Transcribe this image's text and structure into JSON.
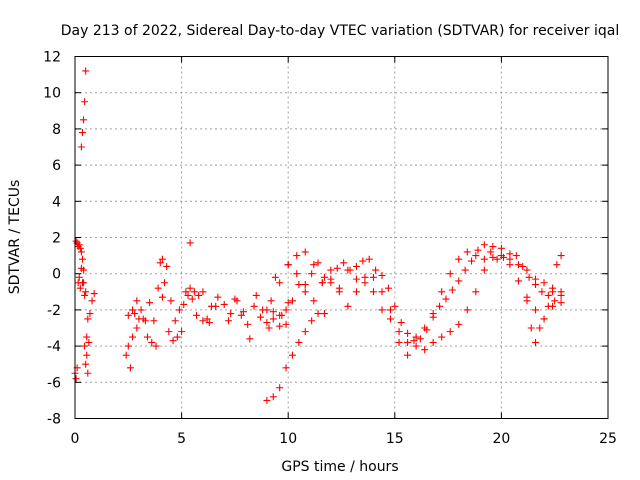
{
  "chart_data": {
    "type": "scatter",
    "title": "Day 213 of 2022, Sidereal Day-to-day VTEC variation (SDTVAR) for receiver iqal",
    "xlabel": "GPS time / hours",
    "ylabel": "SDTVAR / TECUs",
    "xlim": [
      0,
      25
    ],
    "ylim": [
      -8,
      12
    ],
    "xticks": [
      "0",
      "5",
      "10",
      "15",
      "20",
      "25"
    ],
    "yticks": [
      "-8",
      "-6",
      "-4",
      "-2",
      "0",
      "2",
      "4",
      "6",
      "8",
      "10",
      "12"
    ],
    "grid": true,
    "marker": "+",
    "colors": {
      "marker": "#ff0000",
      "grid": "#a0a0a0",
      "axis": "#000000"
    },
    "series": [
      {
        "name": "SDTVAR",
        "x": [
          0.0,
          0.05,
          0.1,
          0.15,
          0.2,
          0.25,
          0.3,
          0.35,
          0.4,
          0.45,
          0.5,
          0.55,
          0.6,
          0.65,
          0.7,
          0.8,
          0.9,
          0.05,
          0.1,
          0.15,
          0.2,
          0.25,
          0.3,
          0.35,
          0.4,
          0.45,
          0.5,
          0.55,
          0.6,
          0.3,
          0.35,
          0.4,
          0.45,
          0.5,
          2.4,
          2.5,
          2.6,
          2.7,
          2.8,
          2.9,
          3.0,
          3.2,
          3.4,
          3.6,
          3.8,
          4.0,
          4.1,
          4.2,
          4.4,
          4.6,
          4.8,
          5.0,
          5.2,
          5.4,
          5.6,
          5.8,
          6.0,
          6.2,
          6.4,
          2.5,
          2.7,
          2.9,
          3.1,
          3.3,
          3.5,
          3.7,
          3.9,
          4.1,
          4.3,
          4.5,
          4.7,
          4.9,
          5.1,
          5.3,
          5.5,
          5.7,
          6.0,
          6.3,
          6.6,
          5.4,
          6.7,
          7.0,
          7.3,
          7.6,
          7.9,
          8.2,
          8.5,
          8.8,
          9.1,
          9.4,
          9.7,
          10.0,
          7.2,
          7.5,
          7.8,
          8.1,
          8.4,
          8.7,
          9.0,
          9.3,
          9.6,
          9.9,
          9.2,
          9.6,
          10.0,
          10.4,
          10.8,
          11.2,
          11.6,
          12.0,
          12.4,
          12.8,
          13.2,
          13.6,
          14.0,
          14.4,
          14.8,
          15.2,
          15.6,
          16.0,
          16.4,
          16.8,
          17.2,
          17.6,
          18.0,
          18.4,
          18.8,
          19.2,
          19.6,
          20.0,
          20.4,
          20.8,
          21.2,
          21.6,
          22.0,
          22.4,
          22.8,
          9.0,
          9.3,
          9.6,
          9.9,
          10.2,
          10.5,
          10.8,
          11.1,
          11.4,
          11.7,
          12.0,
          12.3,
          12.6,
          12.9,
          13.2,
          13.5,
          13.8,
          14.1,
          14.4,
          14.7,
          15.0,
          15.3,
          15.6,
          15.9,
          16.2,
          16.5,
          16.8,
          17.1,
          17.4,
          17.7,
          18.0,
          18.3,
          18.6,
          18.9,
          19.2,
          19.5,
          19.8,
          20.1,
          20.4,
          20.7,
          21.0,
          21.3,
          21.6,
          21.9,
          22.2,
          22.5,
          22.8,
          9.0,
          9.3,
          9.6,
          9.9,
          10.2,
          10.5,
          10.8,
          11.1,
          11.4,
          11.7,
          10.0,
          10.4,
          10.8,
          11.2,
          11.6,
          12.0,
          12.4,
          12.8,
          13.2,
          13.6,
          14.0,
          14.4,
          14.8,
          15.2,
          15.6,
          16.0,
          16.4,
          16.8,
          17.2,
          17.6,
          18.0,
          18.4,
          18.8,
          19.2,
          19.6,
          20.0,
          20.4,
          20.8,
          21.2,
          21.6,
          22.0,
          22.4,
          22.8,
          21.2,
          21.4,
          21.6,
          21.8,
          22.0,
          22.2,
          22.4,
          22.6,
          22.8
        ],
        "y": [
          -5.5,
          -5.8,
          -5.2,
          -0.5,
          -0.2,
          -0.8,
          0.3,
          -0.5,
          -0.5,
          -1.2,
          -1.0,
          -3.5,
          -2.5,
          -3.8,
          -2.2,
          -1.5,
          -1.1,
          1.8,
          1.7,
          1.5,
          1.6,
          1.4,
          1.2,
          0.8,
          0.2,
          -4.0,
          -5.0,
          -4.5,
          -5.5,
          7.0,
          7.8,
          8.5,
          9.5,
          11.2,
          -4.5,
          -4.0,
          -5.2,
          -3.5,
          -2.2,
          -3.0,
          -2.5,
          -2.5,
          -3.5,
          -3.8,
          -4.0,
          0.6,
          0.8,
          -0.5,
          -3.2,
          -3.7,
          -3.5,
          -3.2,
          -1.0,
          -0.8,
          -1.0,
          -1.2,
          -1.0,
          -2.5,
          -1.8,
          -2.3,
          -2.0,
          -1.5,
          -2.0,
          -2.6,
          -1.6,
          -2.6,
          -0.8,
          -1.3,
          0.4,
          -1.5,
          -2.6,
          -2.0,
          -1.7,
          -1.2,
          -1.4,
          -2.3,
          -2.6,
          -2.7,
          -1.8,
          1.7,
          -1.3,
          -1.7,
          -2.2,
          -1.5,
          -2.1,
          -3.6,
          -1.2,
          -2.0,
          -3.0,
          -0.2,
          -2.3,
          -1.6,
          -2.6,
          -1.4,
          -2.3,
          -2.8,
          -1.8,
          -2.4,
          -2.7,
          -2.1,
          -2.9,
          -2.0,
          -1.5,
          -0.5,
          0.5,
          1.0,
          1.2,
          0.5,
          -0.5,
          -0.5,
          -0.8,
          0.2,
          -0.3,
          -0.5,
          -0.2,
          -1.0,
          -2.0,
          -3.2,
          -3.8,
          -3.5,
          -3.0,
          -2.2,
          -1.0,
          0.0,
          0.8,
          1.2,
          1.0,
          0.8,
          0.9,
          1.0,
          0.8,
          0.5,
          0.2,
          -0.3,
          -0.5,
          -0.8,
          -1.2,
          -2.0,
          -2.5,
          -2.3,
          -2.8,
          -1.5,
          -0.6,
          -0.6,
          0.0,
          0.6,
          -0.2,
          0.2,
          0.3,
          0.6,
          0.2,
          0.4,
          0.7,
          0.8,
          0.2,
          -0.1,
          -0.8,
          -1.8,
          -2.7,
          -3.3,
          -3.7,
          -3.6,
          -3.1,
          -2.4,
          -1.8,
          -1.4,
          -0.9,
          -0.4,
          0.2,
          0.7,
          1.3,
          1.6,
          1.2,
          0.8,
          0.9,
          1.1,
          1.0,
          0.4,
          -0.2,
          -0.6,
          -1.0,
          -1.2,
          -1.5,
          -1.6,
          -7.0,
          -6.8,
          -6.3,
          -5.2,
          -4.5,
          -3.8,
          -3.2,
          -2.6,
          -2.2,
          -2.2,
          0.5,
          0.0,
          -1.0,
          -1.5,
          -0.5,
          -0.3,
          -1.0,
          -1.8,
          -1.0,
          -0.2,
          -1.0,
          -2.0,
          -2.5,
          -3.8,
          -4.5,
          -4.0,
          -4.2,
          -3.8,
          -3.5,
          -3.2,
          -2.8,
          -2.0,
          -1.0,
          0.2,
          1.5,
          1.4,
          0.5,
          -0.4,
          -1.3,
          -2.0,
          -2.5,
          -1.8,
          -1.0,
          -1.5,
          -3.0,
          -3.8,
          -3.0,
          -2.5,
          -1.8,
          -1.0,
          0.5,
          1.0
        ]
      }
    ]
  }
}
